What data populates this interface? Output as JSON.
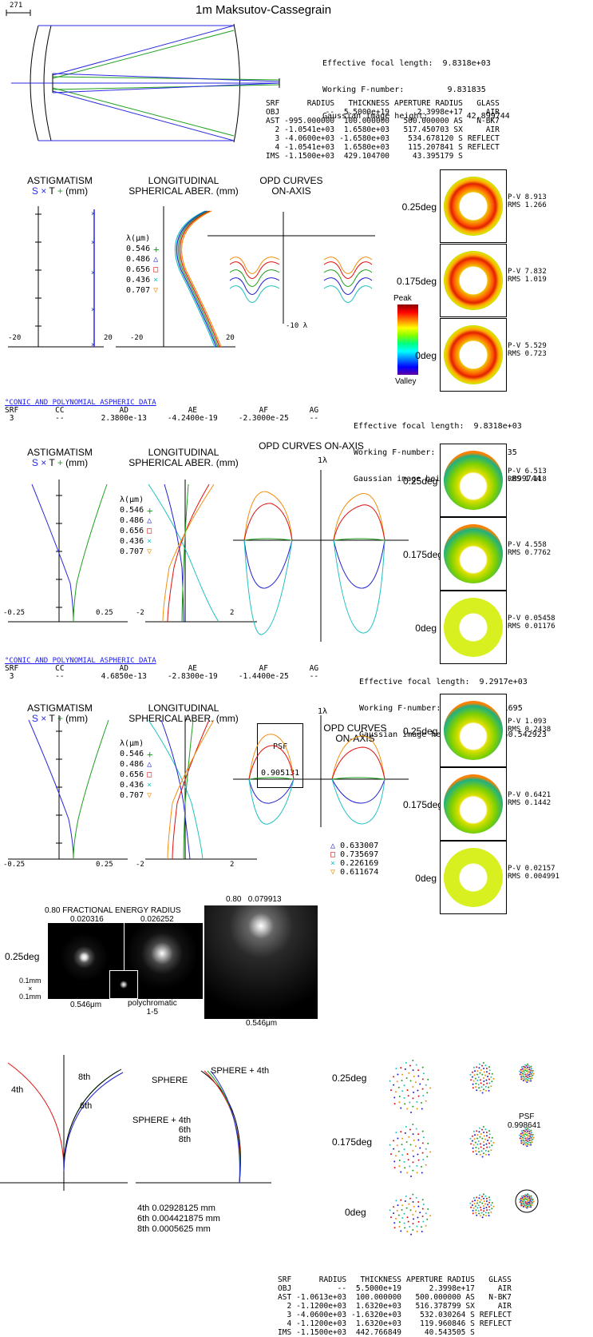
{
  "header": {
    "title": "1m Maksutov-Cassegrain",
    "scale_label": "271"
  },
  "summary1": {
    "efl_label": "Effective focal length:",
    "efl": "9.8318e+03",
    "fno_label": "Working F-number:",
    "fno": "9.831835",
    "gih_label": "Gaussian image height:",
    "gih": "42.899744"
  },
  "lens_table1": {
    "headers": [
      "SRF",
      "RADIUS",
      "THICKNESS",
      "APERTURE RADIUS",
      "GLASS"
    ],
    "rows": [
      [
        "OBJ",
        "--",
        "5.5000e+19",
        "2.3998e+17",
        "AIR"
      ],
      [
        "AST",
        "-995.000000",
        "100.000000",
        "500.000000 AS",
        "N-BK7"
      ],
      [
        "2",
        "-1.0541e+03",
        "1.6580e+03",
        "517.450703 SX",
        "AIR"
      ],
      [
        "3",
        "-4.0600e+03",
        "-1.6580e+03",
        "534.678120 S",
        "REFLECT"
      ],
      [
        "4",
        "-1.0541e+03",
        "1.6580e+03",
        "115.207841 S",
        "REFLECT"
      ],
      [
        "IMS",
        "-1.1500e+03",
        "429.104700",
        "43.395179 S",
        ""
      ]
    ]
  },
  "plots": {
    "astig_title1": "ASTIGMATISM",
    "astig_title2": "(mm)",
    "astig_s": "S",
    "astig_t": "T",
    "long_title1": "LONGITUDINAL",
    "long_title2": "SPHERICAL ABER. (mm)",
    "lambda_label": "λ(μm)",
    "wavelengths": [
      "0.546",
      "0.486",
      "0.656",
      "0.436",
      "0.707"
    ],
    "wave_colors": [
      "#1fa01f",
      "#2020d0",
      "#e01010",
      "#20c0c0",
      "#f09010"
    ],
    "wave_symbols": [
      "+",
      "△",
      "□",
      "×",
      "▽"
    ],
    "opd1_title": "OPD CURVES\nON-AXIS",
    "opd2_title": "OPD CURVES ON-AXIS",
    "opd3_title": "OPD CURVES\nON-AXIS",
    "unit_1lambda": "1λ",
    "unit_10lambda": "-10 λ",
    "peak": "Peak",
    "valley": "Valley"
  },
  "section1": {
    "astig_axis": [
      "-20",
      "20"
    ],
    "long_axis": [
      "-20",
      "20"
    ],
    "maps": [
      {
        "field": "0.25deg",
        "pv": "P-V 8.913",
        "rms": "RMS 1.266"
      },
      {
        "field": "0.175deg",
        "pv": "P-V 7.832",
        "rms": "RMS 1.019"
      },
      {
        "field": "0deg",
        "pv": "P-V 5.529",
        "rms": "RMS 0.723"
      }
    ]
  },
  "asph1": {
    "link": "°CONIC AND POLYNOMIAL ASPHERIC DATA",
    "headers": [
      "SRF",
      "CC",
      "AD",
      "AE",
      "AF",
      "AG"
    ],
    "row": [
      "3",
      "--",
      "2.3800e-13",
      "-4.2400e-19",
      "-2.3000e-25",
      "--"
    ],
    "efl": "9.8318e+03",
    "fno": "9.831835",
    "gih": "42.899744"
  },
  "section2": {
    "astig_axis": [
      "-0.25",
      "0.25"
    ],
    "long_axis": [
      "-2",
      "2"
    ],
    "maps": [
      {
        "field": "0.25deg",
        "pv": "P-V 6.513",
        "rms": "RMS 1.118"
      },
      {
        "field": "0.175deg",
        "pv": "P-V 4.558",
        "rms": "RMS 0.7762"
      },
      {
        "field": "0deg",
        "pv": "P-V 0.05458",
        "rms": "RMS 0.01176"
      }
    ]
  },
  "asph2": {
    "link": "°CONIC AND POLYNOMIAL ASPHERIC DATA",
    "headers": [
      "SRF",
      "CC",
      "AD",
      "AE",
      "AF",
      "AG"
    ],
    "row": [
      "3",
      "--",
      "4.6850e-13",
      "-2.8300e-19",
      "-1.4400e-25",
      "--"
    ],
    "efl": "9.2917e+03",
    "fno": "9.291695",
    "gih": "40.542923"
  },
  "section3": {
    "astig_axis": [
      "-0.25",
      "0.25"
    ],
    "long_axis": [
      "-2",
      "2"
    ],
    "psf_label": "PSF",
    "psf_value": "0.905131",
    "strehl": [
      "0.633007",
      "0.735697",
      "0.226169",
      "0.611674"
    ],
    "maps": [
      {
        "field": "0.25deg",
        "pv": "P-V 1.093",
        "rms": "RMS 0.2438"
      },
      {
        "field": "0.175deg",
        "pv": "P-V 0.6421",
        "rms": "RMS 0.1442"
      },
      {
        "field": "0deg",
        "pv": "P-V 0.02157",
        "rms": "RMS 0.004991"
      }
    ]
  },
  "psf_section": {
    "frac_label": "0.80 FRACTIONAL ENERGY RADIUS",
    "frac1": "0.020316",
    "frac2": "0.026252",
    "big_label": "0.80   0.079913",
    "field": "0.25deg",
    "scale": "0.1mm\n×\n0.1mm",
    "wl1": "0.546μm",
    "poly": "polychromatic\n1-5",
    "wl2": "0.546μm"
  },
  "spots": {
    "fields": [
      "0.25deg",
      "0.175deg",
      "0deg"
    ],
    "psf_label": "PSF",
    "psf_value": "0.998641"
  },
  "profile": {
    "left_labels": [
      "4th",
      "8th",
      "6th"
    ],
    "right_labels": [
      "SPHERE",
      "SPHERE + 4th",
      "SPHERE + 4th\n6th\n8th"
    ],
    "terms": [
      {
        "order": "4th",
        "value": "0.02928125 mm"
      },
      {
        "order": "6th",
        "value": "0.004421875 mm"
      },
      {
        "order": "8th",
        "value": "0.0005625 mm"
      }
    ]
  },
  "lens_table2": {
    "headers": [
      "SRF",
      "RADIUS",
      "THICKNESS",
      "APERTURE RADIUS",
      "GLASS"
    ],
    "rows": [
      [
        "OBJ",
        "--",
        "5.5000e+19",
        "2.3998e+17",
        "AIR"
      ],
      [
        "AST",
        "-1.0613e+03",
        "100.000000",
        "500.000000 AS",
        "N-BK7"
      ],
      [
        "2",
        "-1.1200e+03",
        "1.6320e+03",
        "516.378799 SX",
        "AIR"
      ],
      [
        "3",
        "-4.0600e+03",
        "-1.6320e+03",
        "532.030264 S",
        "REFLECT"
      ],
      [
        "4",
        "-1.1200e+03",
        "1.6320e+03",
        "119.960846 S",
        "REFLECT"
      ],
      [
        "IMS",
        "-1.1500e+03",
        "442.766849",
        "40.543505 S",
        ""
      ]
    ]
  }
}
